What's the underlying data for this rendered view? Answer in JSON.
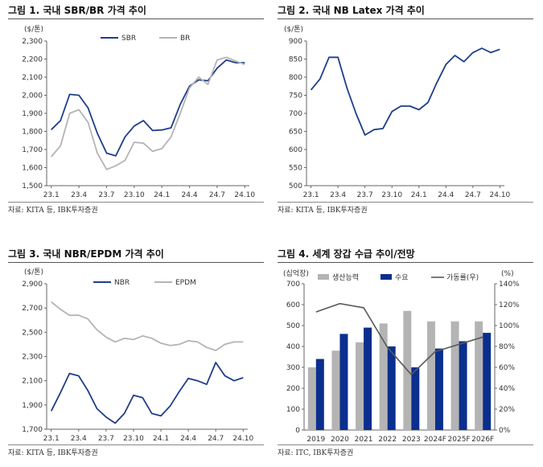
{
  "figures": [
    {
      "title": "그림 1. 국내 SBR/BR 가격 추이",
      "source": "자료: KITA 등, IBK투자증권"
    },
    {
      "title": "그림 2. 국내 NB Latex 가격 추이",
      "source": "자료: KITA 등, IBK투자증권"
    },
    {
      "title": "그림 3. 국내 NBR/EPDM 가격 추이",
      "source": "자료: KITA 등, IBK투자증권"
    },
    {
      "title": "그림 4. 세계 장갑 수급 추이/전망",
      "source": "자료: ITC, IBK투자증권"
    }
  ],
  "chart_data": [
    {
      "type": "line",
      "unit_label": "($/톤)",
      "x_ticks": [
        "23.1",
        "23.4",
        "23.7",
        "23.10",
        "24.1",
        "24.4",
        "24.7",
        "24.10"
      ],
      "ylim": [
        1500,
        2300
      ],
      "y_ticks": [
        1500,
        1600,
        1700,
        1800,
        1900,
        2000,
        2100,
        2200,
        2300
      ],
      "series": [
        {
          "name": "SBR",
          "color": "#1f3d8c",
          "values": [
            1810,
            1860,
            2005,
            2000,
            1930,
            1790,
            1680,
            1665,
            1770,
            1830,
            1860,
            1805,
            1808,
            1820,
            1950,
            2050,
            2085,
            2080,
            2150,
            2195,
            2180,
            2180
          ]
        },
        {
          "name": "BR",
          "color": "#b4b4b4",
          "values": [
            1660,
            1720,
            1900,
            1920,
            1850,
            1680,
            1590,
            1610,
            1640,
            1740,
            1735,
            1690,
            1705,
            1770,
            1900,
            2040,
            2100,
            2060,
            2195,
            2210,
            2190,
            2170
          ]
        }
      ]
    },
    {
      "type": "line",
      "unit_label": "($/톤)",
      "x_ticks": [
        "23.1",
        "23.4",
        "23.7",
        "23.10",
        "24.1",
        "24.4",
        "24.7",
        "24.10"
      ],
      "ylim": [
        500,
        900
      ],
      "y_ticks": [
        500,
        550,
        600,
        650,
        700,
        750,
        800,
        850,
        900
      ],
      "series": [
        {
          "name": "NB Latex",
          "color": "#1f3d8c",
          "values": [
            765,
            795,
            855,
            855,
            770,
            700,
            640,
            655,
            658,
            705,
            720,
            720,
            710,
            730,
            785,
            835,
            860,
            843,
            868,
            880,
            868,
            877
          ]
        }
      ]
    },
    {
      "type": "line",
      "unit_label": "($/톤)",
      "x_ticks": [
        "23.1",
        "23.4",
        "23.7",
        "23.10",
        "24.1",
        "24.4",
        "24.7",
        "24.10"
      ],
      "ylim": [
        1700,
        2900
      ],
      "y_ticks": [
        1700,
        1900,
        2100,
        2300,
        2500,
        2700,
        2900
      ],
      "series": [
        {
          "name": "NBR",
          "color": "#1f3d8c",
          "values": [
            1850,
            2000,
            2160,
            2140,
            2020,
            1870,
            1800,
            1750,
            1830,
            1980,
            1960,
            1830,
            1810,
            1890,
            2010,
            2120,
            2100,
            2070,
            2250,
            2140,
            2100,
            2125
          ]
        },
        {
          "name": "EPDM",
          "color": "#b4b4b4",
          "values": [
            2750,
            2690,
            2640,
            2640,
            2610,
            2520,
            2460,
            2420,
            2450,
            2440,
            2470,
            2450,
            2410,
            2390,
            2400,
            2430,
            2420,
            2375,
            2350,
            2400,
            2420,
            2420
          ]
        }
      ]
    },
    {
      "type": "bar",
      "left_unit_label": "(십억장)",
      "right_unit_label": "(%)",
      "categories": [
        "2019",
        "2020",
        "2021",
        "2022",
        "2023",
        "2024F",
        "2025F",
        "2026F"
      ],
      "ylim": [
        0,
        700
      ],
      "y_ticks": [
        0,
        100,
        200,
        300,
        400,
        500,
        600,
        700
      ],
      "y2lim": [
        0,
        140
      ],
      "y2_ticks": [
        "0%",
        "20%",
        "40%",
        "60%",
        "80%",
        "100%",
        "120%",
        "140%"
      ],
      "series": [
        {
          "name": "생산능력",
          "kind": "bar",
          "color": "#b4b4b4",
          "values": [
            300,
            380,
            420,
            510,
            570,
            520,
            520,
            520
          ]
        },
        {
          "name": "수요",
          "kind": "bar",
          "color": "#0b2f8e",
          "values": [
            340,
            460,
            490,
            400,
            300,
            390,
            425,
            465
          ]
        },
        {
          "name": "가동률(우)",
          "kind": "line",
          "axis": "right",
          "color": "#595959",
          "values": [
            113,
            121,
            117,
            79,
            53,
            75,
            82,
            89
          ]
        }
      ]
    }
  ]
}
